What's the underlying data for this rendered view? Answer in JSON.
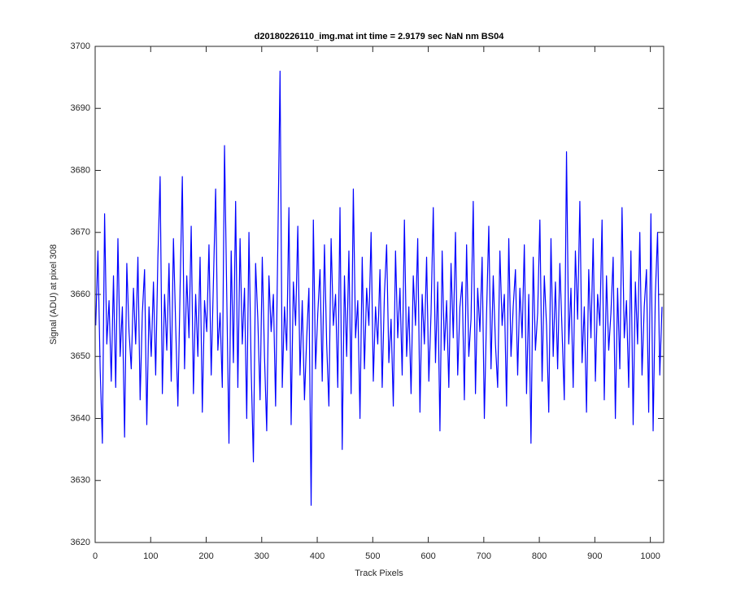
{
  "chart_data": {
    "type": "line",
    "title": "d20180226110_img.mat int time = 2.9179 sec  NaN nm BS04",
    "x_label": "Track Pixels",
    "y_label": "Signal (ADU) at pixel 308",
    "color": "#0000ff",
    "xlim": [
      0,
      1024
    ],
    "ylim": [
      3620,
      3700
    ],
    "xticks": [
      0,
      100,
      200,
      300,
      400,
      500,
      600,
      700,
      800,
      900,
      1000
    ],
    "yticks": [
      3620,
      3630,
      3640,
      3650,
      3660,
      3670,
      3680,
      3690,
      3700
    ],
    "grid": false,
    "x": [
      1,
      5,
      9,
      13,
      17,
      21,
      25,
      29,
      33,
      37,
      41,
      45,
      49,
      53,
      57,
      61,
      65,
      69,
      73,
      77,
      81,
      85,
      89,
      93,
      97,
      101,
      105,
      109,
      113,
      117,
      121,
      125,
      129,
      133,
      137,
      141,
      145,
      149,
      153,
      157,
      161,
      165,
      169,
      173,
      177,
      181,
      185,
      189,
      193,
      197,
      201,
      205,
      209,
      213,
      217,
      221,
      225,
      229,
      233,
      237,
      241,
      245,
      249,
      253,
      257,
      261,
      265,
      269,
      273,
      277,
      281,
      285,
      289,
      293,
      297,
      301,
      305,
      309,
      313,
      317,
      321,
      325,
      329,
      333,
      337,
      341,
      345,
      349,
      353,
      357,
      361,
      365,
      369,
      373,
      377,
      381,
      385,
      389,
      393,
      397,
      401,
      405,
      409,
      413,
      417,
      421,
      425,
      429,
      433,
      437,
      441,
      445,
      449,
      453,
      457,
      461,
      465,
      469,
      473,
      477,
      481,
      485,
      489,
      493,
      497,
      501,
      505,
      509,
      513,
      517,
      521,
      525,
      529,
      533,
      537,
      541,
      545,
      549,
      553,
      557,
      561,
      565,
      569,
      573,
      577,
      581,
      585,
      589,
      593,
      597,
      601,
      605,
      609,
      613,
      617,
      621,
      625,
      629,
      633,
      637,
      641,
      645,
      649,
      653,
      657,
      661,
      665,
      669,
      673,
      677,
      681,
      685,
      689,
      693,
      697,
      701,
      705,
      709,
      713,
      717,
      721,
      725,
      729,
      733,
      737,
      741,
      745,
      749,
      753,
      757,
      761,
      765,
      769,
      773,
      777,
      781,
      785,
      789,
      793,
      797,
      801,
      805,
      809,
      813,
      817,
      821,
      825,
      829,
      833,
      837,
      841,
      845,
      849,
      853,
      857,
      861,
      865,
      869,
      873,
      877,
      881,
      885,
      889,
      893,
      897,
      901,
      905,
      909,
      913,
      917,
      921,
      925,
      929,
      933,
      937,
      941,
      945,
      949,
      953,
      957,
      961,
      965,
      969,
      973,
      977,
      981,
      985,
      989,
      993,
      997,
      1001,
      1005,
      1009,
      1013,
      1017,
      1021
    ],
    "values": [
      3655,
      3667,
      3648,
      3636,
      3673,
      3652,
      3659,
      3646,
      3663,
      3645,
      3669,
      3650,
      3658,
      3637,
      3665,
      3654,
      3648,
      3661,
      3652,
      3666,
      3643,
      3657,
      3664,
      3639,
      3658,
      3650,
      3662,
      3647,
      3666,
      3679,
      3644,
      3660,
      3651,
      3665,
      3646,
      3669,
      3655,
      3642,
      3661,
      3679,
      3648,
      3663,
      3653,
      3671,
      3644,
      3660,
      3650,
      3666,
      3641,
      3659,
      3654,
      3668,
      3647,
      3662,
      3677,
      3651,
      3657,
      3645,
      3684,
      3660,
      3636,
      3667,
      3649,
      3675,
      3645,
      3669,
      3652,
      3661,
      3640,
      3670,
      3648,
      3633,
      3665,
      3656,
      3643,
      3666,
      3650,
      3638,
      3663,
      3654,
      3660,
      3642,
      3668,
      3696,
      3645,
      3658,
      3651,
      3674,
      3639,
      3662,
      3655,
      3671,
      3647,
      3659,
      3643,
      3653,
      3661,
      3626,
      3672,
      3648,
      3657,
      3664,
      3646,
      3668,
      3652,
      3642,
      3669,
      3655,
      3660,
      3645,
      3674,
      3635,
      3663,
      3650,
      3667,
      3644,
      3677,
      3653,
      3659,
      3640,
      3666,
      3648,
      3661,
      3655,
      3670,
      3646,
      3658,
      3652,
      3664,
      3645,
      3660,
      3668,
      3649,
      3656,
      3642,
      3667,
      3653,
      3661,
      3647,
      3672,
      3650,
      3658,
      3644,
      3663,
      3655,
      3669,
      3641,
      3660,
      3652,
      3666,
      3646,
      3657,
      3674,
      3649,
      3662,
      3638,
      3667,
      3651,
      3659,
      3645,
      3665,
      3653,
      3670,
      3647,
      3658,
      3662,
      3643,
      3668,
      3650,
      3656,
      3675,
      3644,
      3661,
      3654,
      3666,
      3640,
      3657,
      3671,
      3648,
      3663,
      3652,
      3645,
      3667,
      3655,
      3660,
      3642,
      3669,
      3650,
      3658,
      3664,
      3647,
      3661,
      3653,
      3668,
      3644,
      3660,
      3636,
      3666,
      3651,
      3657,
      3672,
      3646,
      3663,
      3655,
      3641,
      3669,
      3650,
      3662,
      3648,
      3665,
      3654,
      3643,
      3683,
      3652,
      3661,
      3645,
      3667,
      3656,
      3675,
      3649,
      3658,
      3641,
      3664,
      3653,
      3669,
      3646,
      3660,
      3655,
      3672,
      3643,
      3663,
      3651,
      3657,
      3666,
      3640,
      3661,
      3648,
      3674,
      3653,
      3659,
      3645,
      3667,
      3639,
      3662,
      3652,
      3670,
      3647,
      3658,
      3664,
      3641,
      3673,
      3638,
      3660,
      3670,
      3647,
      3658
    ]
  }
}
